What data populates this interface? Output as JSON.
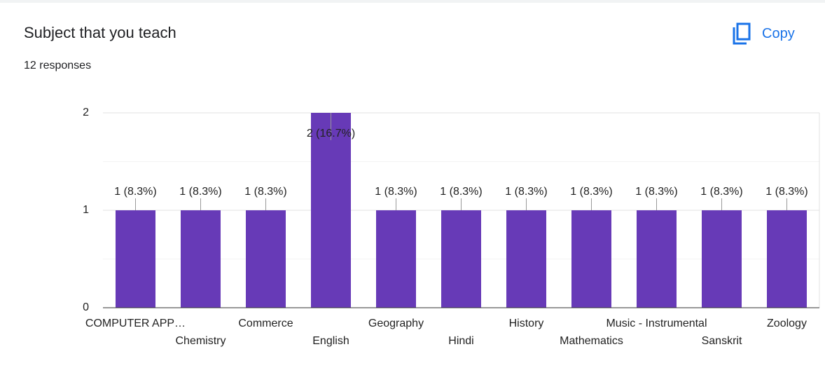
{
  "header": {
    "title": "Subject that you teach",
    "subtitle": "12 responses",
    "copy_button": "Copy"
  },
  "chart_data": {
    "type": "bar",
    "categories": [
      "COMPUTER APP…",
      "Chemistry",
      "Commerce",
      "English",
      "Geography",
      "Hindi",
      "History",
      "Mathematics",
      "Music - Instrumental",
      "Sanskrit",
      "Zoology"
    ],
    "values": [
      1,
      1,
      1,
      2,
      1,
      1,
      1,
      1,
      1,
      1,
      1
    ],
    "value_labels": [
      "1 (8.3%)",
      "1 (8.3%)",
      "1 (8.3%)",
      "2 (16.7%)",
      "1 (8.3%)",
      "1 (8.3%)",
      "1 (8.3%)",
      "1 (8.3%)",
      "1 (8.3%)",
      "1 (8.3%)",
      "1 (8.3%)"
    ],
    "color": "#673ab7",
    "ylim": [
      0,
      2
    ],
    "yticks": [
      0,
      1,
      2
    ],
    "grid": true
  }
}
